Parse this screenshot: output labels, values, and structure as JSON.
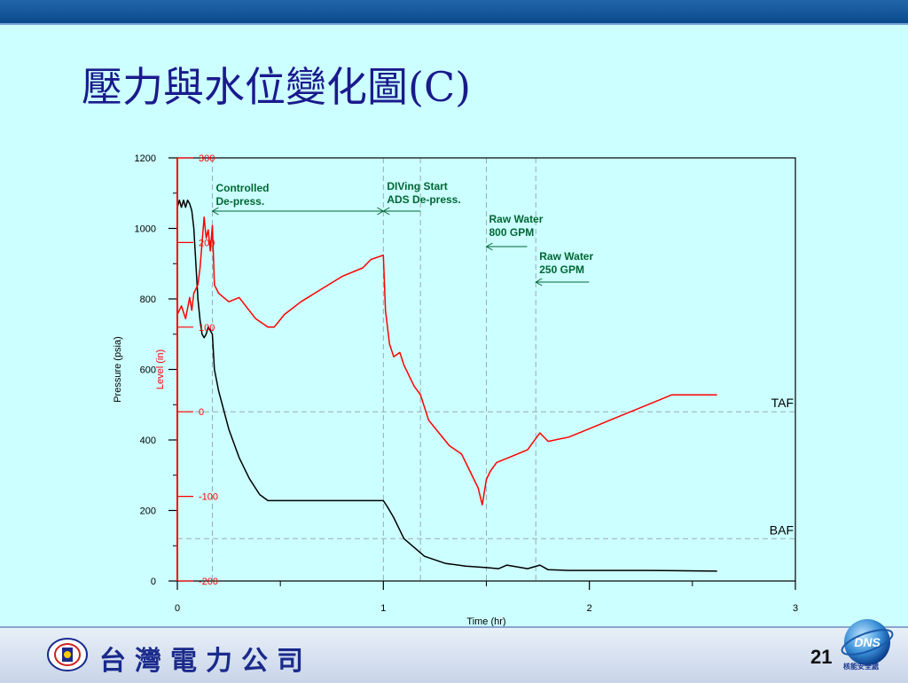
{
  "slide": {
    "title": "壓力與水位變化圖(C)",
    "page_number": "21",
    "company_name": "台灣電力公司",
    "logo_text": "DNS",
    "logo_subtext": "核能安全處"
  },
  "colors": {
    "pressure": "#000000",
    "level": "#ff0000",
    "annotation": "#006633",
    "background": "#ccffff",
    "title": "#1a1a8c"
  },
  "chart_data": {
    "type": "line",
    "xlabel": "Time (hr)",
    "ylabel": "Pressure (psia)",
    "y2label": "Level (in)",
    "xlim": [
      0,
      3
    ],
    "ylim": [
      0,
      1200
    ],
    "y2lim": [
      -200,
      300
    ],
    "x_ticks": [
      0,
      1,
      2,
      3
    ],
    "x_tick_labels": [
      "0",
      "1",
      "2",
      "3"
    ],
    "y_ticks": [
      0,
      200,
      400,
      600,
      800,
      1000,
      1200
    ],
    "y_tick_labels": [
      "0",
      "200",
      "400",
      "600",
      "800",
      "1000",
      "1200"
    ],
    "y2_ticks": [
      -200,
      -100,
      0,
      100,
      200,
      300
    ],
    "y2_tick_labels": [
      "-200",
      "-100",
      "0",
      "100",
      "200",
      "300"
    ],
    "vlines": [
      0.17,
      1.0,
      1.18,
      1.5,
      1.74
    ],
    "hlines": [
      {
        "name": "TAF",
        "y2": 0
      },
      {
        "name": "BAF",
        "y2": -150
      }
    ],
    "annotations": [
      {
        "text": [
          "Controlled",
          "De-press."
        ],
        "x_from": 0.17,
        "x_to": 1.0
      },
      {
        "text": [
          "DIVing Start",
          "ADS De-press."
        ],
        "x_from": 1.0,
        "x_to": 1.18
      },
      {
        "text": [
          "Raw Water",
          "800 GPM"
        ],
        "x": 1.5
      },
      {
        "text": [
          "Raw Water",
          "250 GPM"
        ],
        "x": 1.74
      }
    ],
    "series": [
      {
        "axis": "left",
        "x": [
          0,
          0.01,
          0.02,
          0.03,
          0.04,
          0.05,
          0.06,
          0.07,
          0.08,
          0.09,
          0.1,
          0.11,
          0.12,
          0.13,
          0.14,
          0.15,
          0.16,
          0.17,
          0.18,
          0.2,
          0.25,
          0.3,
          0.35,
          0.4,
          0.44,
          0.5,
          0.6,
          0.7,
          0.8,
          0.9,
          1.0,
          1.02,
          1.05,
          1.1,
          1.2,
          1.3,
          1.4,
          1.5,
          1.56,
          1.6,
          1.7,
          1.76,
          1.8,
          1.9,
          2.0,
          2.3,
          2.62
        ],
        "y": [
          1060,
          1080,
          1060,
          1080,
          1060,
          1080,
          1070,
          1050,
          1000,
          900,
          800,
          740,
          700,
          690,
          700,
          720,
          710,
          700,
          600,
          540,
          430,
          350,
          290,
          245,
          228,
          228,
          228,
          228,
          228,
          228,
          228,
          210,
          180,
          120,
          70,
          50,
          42,
          38,
          35,
          45,
          35,
          45,
          32,
          30,
          30,
          30,
          28
        ]
      },
      {
        "axis": "right",
        "x": [
          0,
          0.02,
          0.04,
          0.06,
          0.07,
          0.08,
          0.1,
          0.11,
          0.12,
          0.13,
          0.14,
          0.15,
          0.16,
          0.17,
          0.18,
          0.2,
          0.25,
          0.3,
          0.38,
          0.44,
          0.47,
          0.52,
          0.6,
          0.7,
          0.8,
          0.9,
          0.94,
          1.0,
          1.01,
          1.03,
          1.05,
          1.08,
          1.1,
          1.13,
          1.15,
          1.18,
          1.22,
          1.27,
          1.32,
          1.38,
          1.42,
          1.46,
          1.48,
          1.5,
          1.52,
          1.55,
          1.6,
          1.65,
          1.7,
          1.73,
          1.76,
          1.8,
          1.9,
          2.0,
          2.1,
          2.2,
          2.3,
          2.35,
          2.4,
          2.5,
          2.6,
          2.62
        ],
        "y": [
          115,
          125,
          110,
          135,
          120,
          140,
          150,
          170,
          200,
          230,
          205,
          215,
          190,
          220,
          150,
          140,
          130,
          135,
          110,
          100,
          100,
          115,
          130,
          145,
          160,
          170,
          180,
          185,
          120,
          80,
          65,
          70,
          55,
          40,
          30,
          20,
          -10,
          -25,
          -40,
          -50,
          -70,
          -90,
          -110,
          -80,
          -70,
          -60,
          -55,
          -50,
          -45,
          -35,
          -25,
          -35,
          -30,
          -20,
          -10,
          0,
          10,
          15,
          20,
          20,
          20,
          20
        ]
      }
    ]
  }
}
